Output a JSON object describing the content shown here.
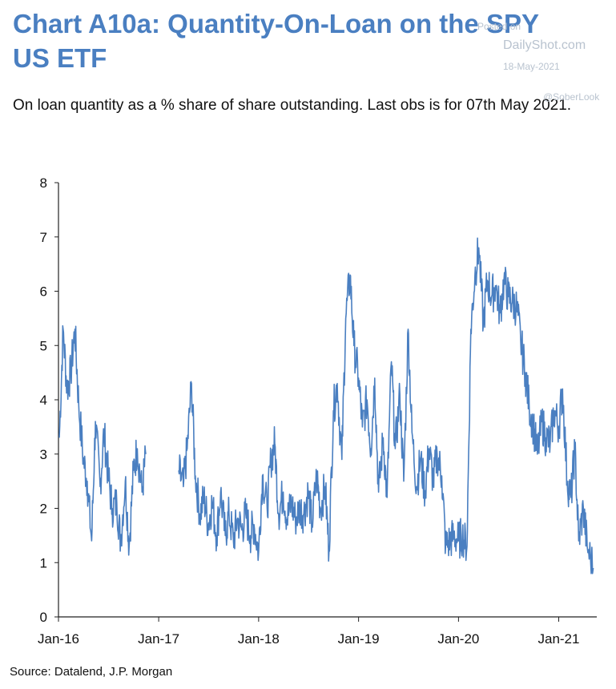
{
  "title": "Chart A10a: Quantity-On-Loan on the SPY US ETF",
  "subtitle": "On loan quantity as a % share of share outstanding. Last obs is for 07th May 2021.",
  "source": "Source: Datalend, J.P. Morgan",
  "watermark": {
    "posted": "Posted on",
    "site": "DailyShot.com",
    "date": "18-May-2021",
    "handle": "@SoberLook"
  },
  "colors": {
    "line": "#4a7fc1",
    "title": "#4a7fc1",
    "axis": "#222222"
  },
  "chart_data": {
    "type": "line",
    "title": "Chart A10a: Quantity-On-Loan on the SPY US ETF",
    "xlabel": "",
    "ylabel": "",
    "ylim": [
      0,
      8
    ],
    "yticks": [
      "0",
      "1",
      "2",
      "3",
      "4",
      "5",
      "6",
      "7",
      "8"
    ],
    "xticks": [
      "Jan-16",
      "Jan-17",
      "Jan-18",
      "Jan-19",
      "Jan-20",
      "Jan-21"
    ],
    "grid": false,
    "series": [
      {
        "color": "#4a7fc1",
        "segments": [
          {
            "x": [
              "2016-01-04",
              "2016-01-18",
              "2016-02-01",
              "2016-02-15",
              "2016-03-01",
              "2016-03-15",
              "2016-04-01",
              "2016-04-15",
              "2016-05-01",
              "2016-05-15",
              "2016-06-01",
              "2016-06-15",
              "2016-07-01",
              "2016-07-15",
              "2016-08-01",
              "2016-08-15",
              "2016-09-01",
              "2016-09-15",
              "2016-10-01",
              "2016-10-15",
              "2016-11-01",
              "2016-11-15"
            ],
            "y": [
              3.3,
              5.3,
              4.2,
              4.5,
              5.3,
              3.9,
              2.9,
              2.5,
              1.4,
              3.6,
              2.4,
              3.4,
              2.6,
              2.0,
              2.1,
              1.4,
              2.5,
              1.3,
              2.7,
              3.1,
              2.3,
              3.0
            ]
          },
          {
            "x": [
              "2017-03-15",
              "2017-04-01",
              "2017-04-15",
              "2017-05-01",
              "2017-05-15",
              "2017-06-01",
              "2017-06-15",
              "2017-07-01",
              "2017-07-15",
              "2017-08-01",
              "2017-08-15",
              "2017-09-01",
              "2017-09-15",
              "2017-10-01",
              "2017-10-15",
              "2017-11-01",
              "2017-11-15",
              "2017-12-01",
              "2017-12-15",
              "2018-01-01",
              "2018-01-15",
              "2018-02-01",
              "2018-02-15",
              "2018-03-01",
              "2018-03-15",
              "2018-04-01",
              "2018-04-15",
              "2018-05-01",
              "2018-05-15",
              "2018-06-01",
              "2018-06-15",
              "2018-07-01",
              "2018-07-15",
              "2018-08-01",
              "2018-08-15",
              "2018-09-01",
              "2018-09-15",
              "2018-10-01",
              "2018-10-15",
              "2018-11-01",
              "2018-11-15",
              "2018-12-01",
              "2018-12-15",
              "2019-01-01",
              "2019-01-15",
              "2019-02-01",
              "2019-02-15",
              "2019-03-01",
              "2019-03-15",
              "2019-04-01",
              "2019-04-15",
              "2019-05-01",
              "2019-05-15",
              "2019-06-01",
              "2019-06-15",
              "2019-07-01",
              "2019-07-15",
              "2019-08-01",
              "2019-08-15",
              "2019-09-01",
              "2019-09-15",
              "2019-10-01",
              "2019-10-15",
              "2019-11-01",
              "2019-11-15",
              "2019-12-01",
              "2019-12-15",
              "2020-01-01",
              "2020-01-15",
              "2020-02-01",
              "2020-02-15",
              "2020-03-01",
              "2020-03-15",
              "2020-04-01",
              "2020-04-15",
              "2020-05-01",
              "2020-05-15",
              "2020-06-01",
              "2020-06-15",
              "2020-07-01",
              "2020-07-15",
              "2020-08-01",
              "2020-08-15",
              "2020-09-01",
              "2020-09-15",
              "2020-10-01",
              "2020-10-15",
              "2020-11-01",
              "2020-11-15",
              "2020-12-01",
              "2020-12-15",
              "2021-01-01",
              "2021-01-15",
              "2021-02-01",
              "2021-02-15",
              "2021-03-01",
              "2021-03-15",
              "2021-04-01",
              "2021-04-15",
              "2021-05-07"
            ],
            "y": [
              2.7,
              2.4,
              3.1,
              4.3,
              2.6,
              1.9,
              2.2,
              1.7,
              2.1,
              1.5,
              2.3,
              1.5,
              1.9,
              1.4,
              1.8,
              1.6,
              1.9,
              1.5,
              1.7,
              1.2,
              2.6,
              2.0,
              2.9,
              3.2,
              1.9,
              2.3,
              1.8,
              2.1,
              1.8,
              2.0,
              1.9,
              2.3,
              1.7,
              2.6,
              2.0,
              2.4,
              1.2,
              3.8,
              4.3,
              2.9,
              5.5,
              6.3,
              5.0,
              4.4,
              3.5,
              4.0,
              3.1,
              4.4,
              2.3,
              3.3,
              2.2,
              4.7,
              3.1,
              4.1,
              2.5,
              5.3,
              3.4,
              2.4,
              2.9,
              2.3,
              3.1,
              2.5,
              3.0,
              2.6,
              1.3,
              1.4,
              1.5,
              1.4,
              1.5,
              1.3,
              5.3,
              6.3,
              6.8,
              5.4,
              6.2,
              5.9,
              6.1,
              5.6,
              6.2,
              5.9,
              5.8,
              5.7,
              5.1,
              4.5,
              3.9,
              3.5,
              3.0,
              3.6,
              3.3,
              3.2,
              3.8,
              3.5,
              4.2,
              2.5,
              2.2,
              3.1,
              1.4,
              2.0,
              1.3,
              0.9
            ]
          }
        ]
      }
    ]
  }
}
